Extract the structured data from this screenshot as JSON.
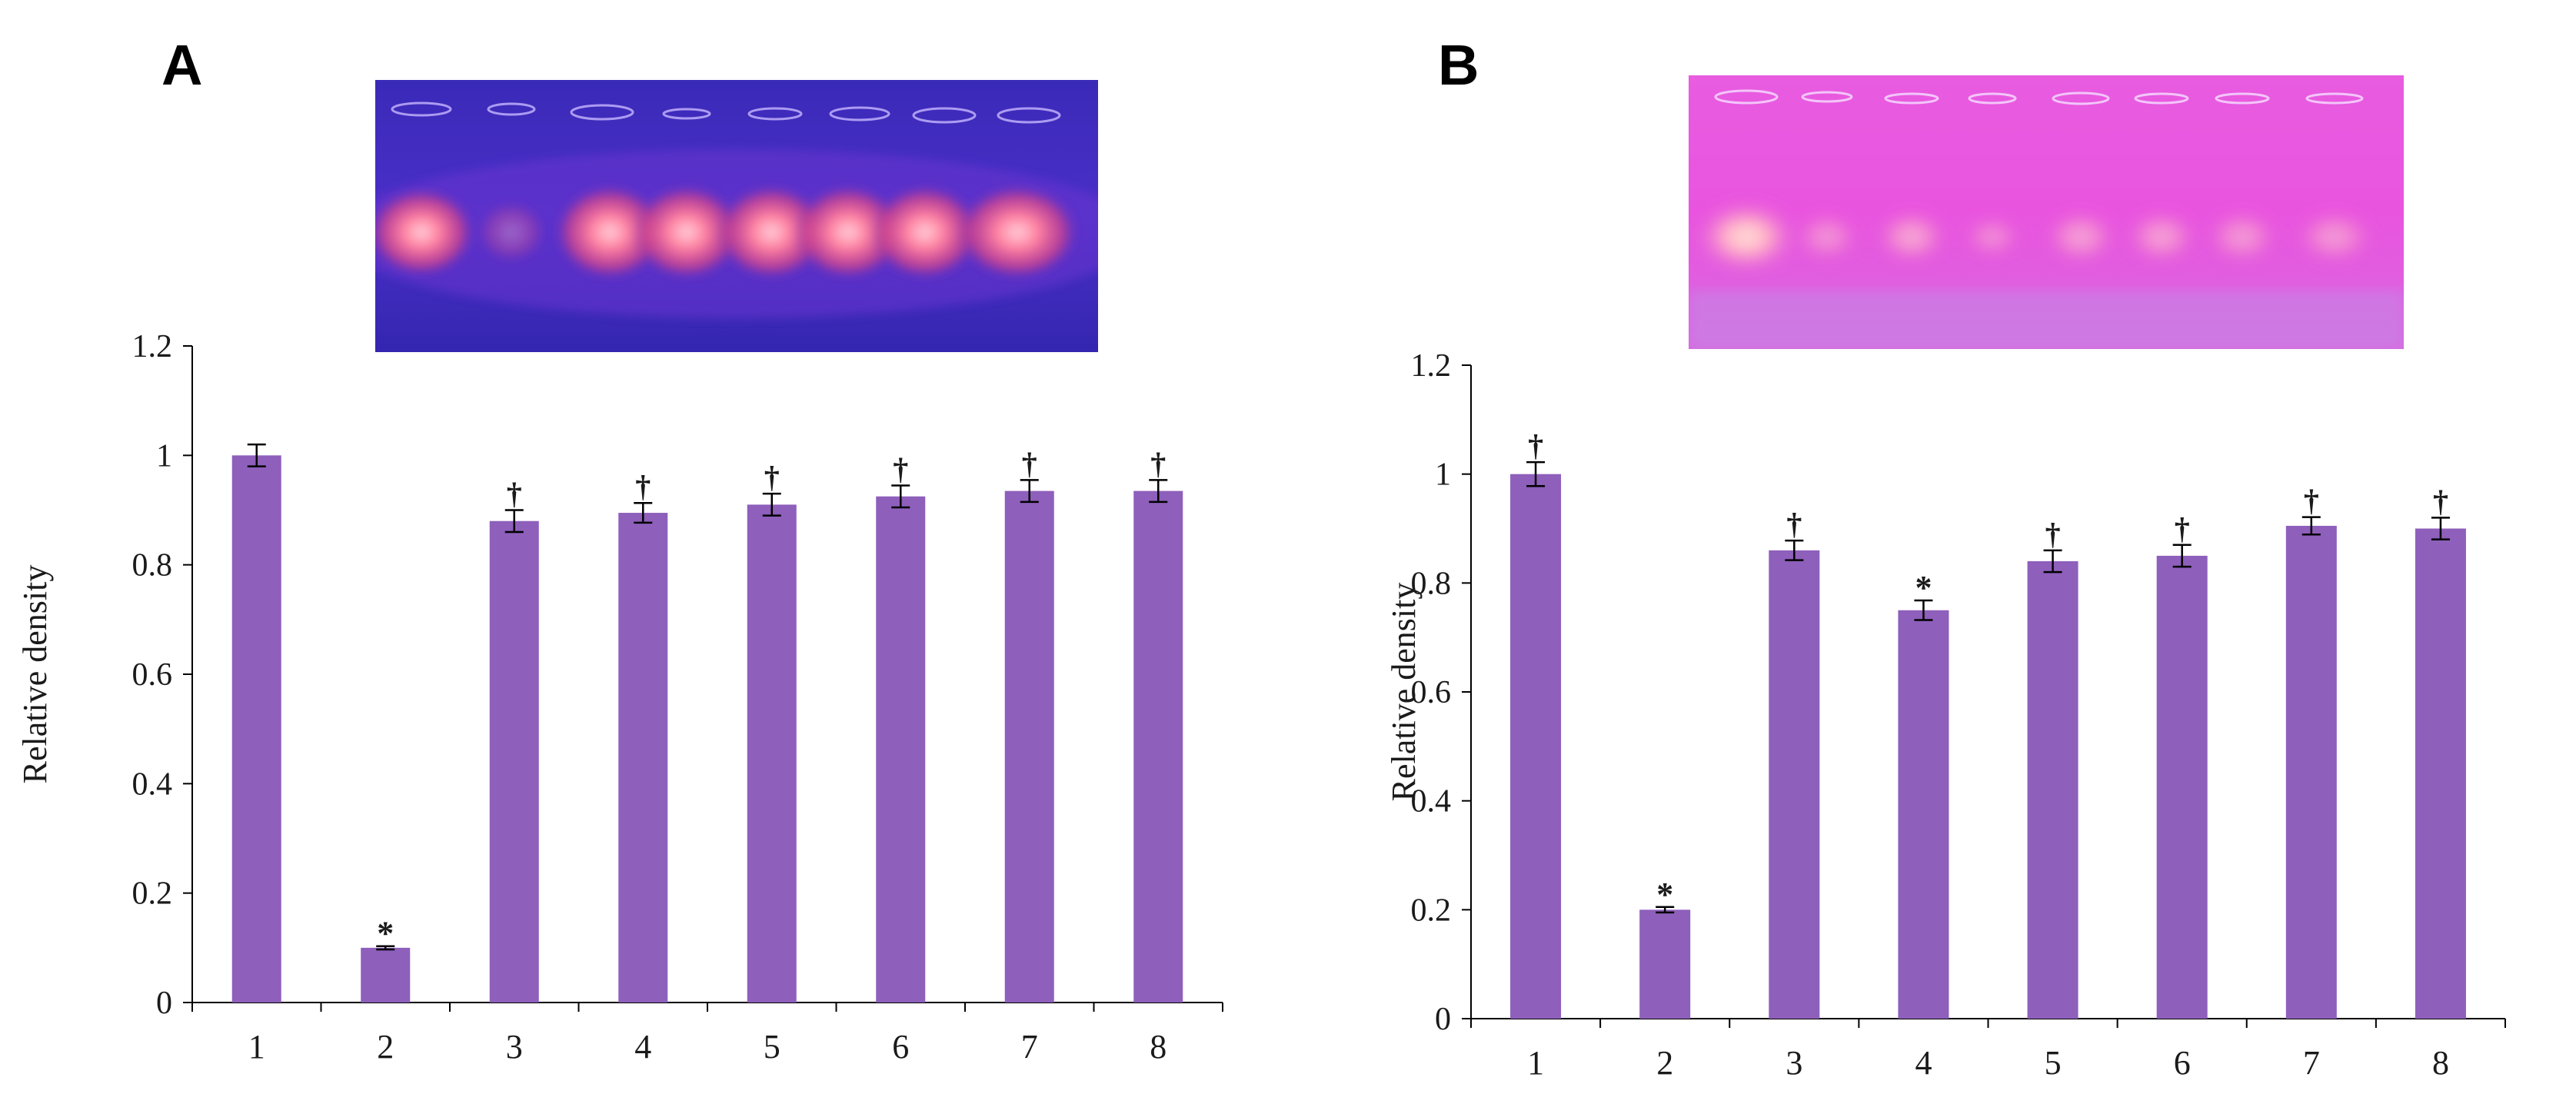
{
  "figure": {
    "panels": [
      {
        "letter": "A",
        "gel_image": "gel-electrophoresis-blue-purple-background"
      },
      {
        "letter": "B",
        "gel_image": "gel-electrophoresis-pink-background"
      }
    ],
    "colors": {
      "bar": "#8E5FBB",
      "axis": "#000000",
      "errorbar": "#000000"
    }
  },
  "chart_data": [
    {
      "panel": "A",
      "type": "bar",
      "title": "",
      "xlabel": "",
      "ylabel": "Relative  density",
      "categories": [
        "1",
        "2",
        "3",
        "4",
        "5",
        "6",
        "7",
        "8"
      ],
      "values": [
        1.0,
        0.1,
        0.88,
        0.895,
        0.91,
        0.925,
        0.935,
        0.935
      ],
      "errors": [
        0.02,
        0.003,
        0.02,
        0.018,
        0.02,
        0.02,
        0.02,
        0.02
      ],
      "annotations": [
        "",
        "*",
        "†",
        "†",
        "†",
        "†",
        "†",
        "†"
      ],
      "ylim": [
        0,
        1.2
      ],
      "yticks": [
        "0",
        "0.2",
        "0.4",
        "0.6",
        "0.8",
        "1",
        "1.2"
      ],
      "grid": false,
      "legend": "none"
    },
    {
      "panel": "B",
      "type": "bar",
      "title": "",
      "xlabel": "",
      "ylabel": "Relative  density",
      "categories": [
        "1",
        "2",
        "3",
        "4",
        "5",
        "6",
        "7",
        "8"
      ],
      "values": [
        1.0,
        0.2,
        0.86,
        0.75,
        0.84,
        0.85,
        0.905,
        0.9
      ],
      "errors": [
        0.022,
        0.005,
        0.018,
        0.018,
        0.02,
        0.02,
        0.016,
        0.02
      ],
      "annotations": [
        "†",
        "*",
        "†",
        "*",
        "†",
        "†",
        "†",
        "†"
      ],
      "ylim": [
        0,
        1.2
      ],
      "yticks": [
        "0",
        "0.2",
        "0.4",
        "0.6",
        "0.8",
        "1",
        "1.2"
      ],
      "grid": false,
      "legend": "none"
    }
  ]
}
